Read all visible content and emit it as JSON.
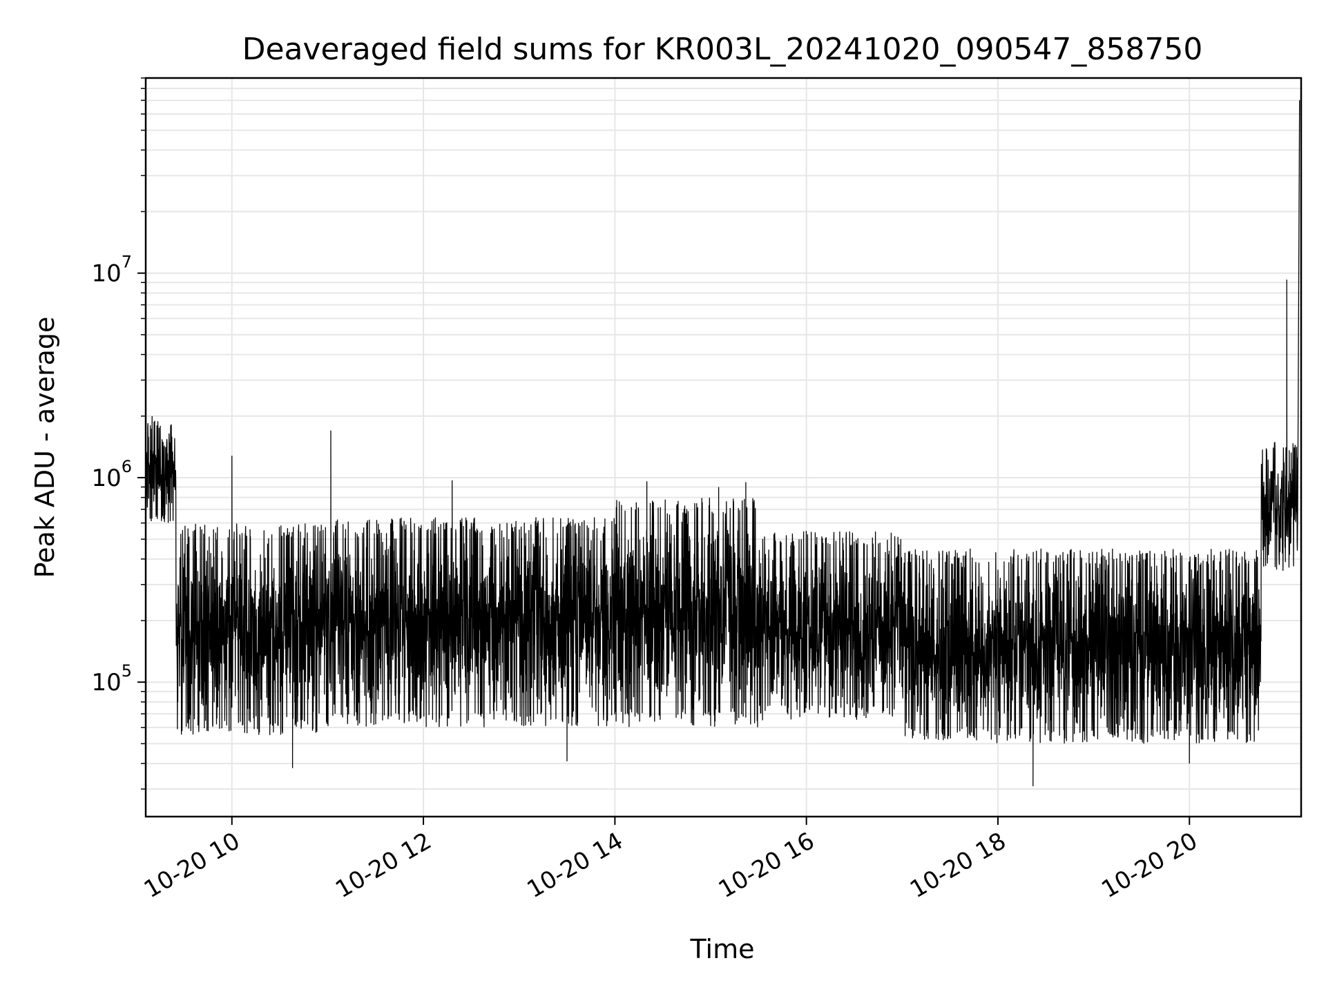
{
  "chart_data": {
    "type": "line",
    "title": "Deaveraged field sums for KR003L_20241020_090547_858750",
    "xlabel": "Time",
    "ylabel": "Peak ADU - average",
    "y_scale": "log",
    "grid": true,
    "line_color": "#000000",
    "grid_color": "#e6e6e6",
    "x_range": [
      "2024-10-20 09:06",
      "2024-10-20 21:10"
    ],
    "y_range": [
      22000,
      90000000
    ],
    "x_ticks": [
      {
        "value": "2024-10-20 10:00",
        "label": "10-20 10"
      },
      {
        "value": "2024-10-20 12:00",
        "label": "10-20 12"
      },
      {
        "value": "2024-10-20 14:00",
        "label": "10-20 14"
      },
      {
        "value": "2024-10-20 16:00",
        "label": "10-20 16"
      },
      {
        "value": "2024-10-20 18:00",
        "label": "10-20 18"
      },
      {
        "value": "2024-10-20 20:00",
        "label": "10-20 20"
      }
    ],
    "y_ticks": [
      {
        "value": 100000,
        "base": "10",
        "exp": "5"
      },
      {
        "value": 1000000,
        "base": "10",
        "exp": "6"
      },
      {
        "value": 10000000,
        "base": "10",
        "exp": "7"
      }
    ],
    "segments": [
      {
        "start": "2024-10-20 09:06",
        "end": "2024-10-20 09:25",
        "low": 600000,
        "high": 1900000
      },
      {
        "start": "2024-10-20 09:25",
        "end": "2024-10-20 11:00",
        "low": 55000,
        "high": 600000
      },
      {
        "start": "2024-10-20 11:00",
        "end": "2024-10-20 14:00",
        "low": 60000,
        "high": 640000
      },
      {
        "start": "2024-10-20 14:00",
        "end": "2024-10-20 15:30",
        "low": 60000,
        "high": 800000
      },
      {
        "start": "2024-10-20 15:30",
        "end": "2024-10-20 17:00",
        "low": 65000,
        "high": 550000
      },
      {
        "start": "2024-10-20 17:00",
        "end": "2024-10-20 20:45",
        "low": 50000,
        "high": 450000
      },
      {
        "start": "2024-10-20 20:45",
        "end": "2024-10-20 21:08",
        "low": 350000,
        "high": 1500000
      }
    ],
    "peaks": [
      {
        "x": "2024-10-20 09:10",
        "y": 2000000
      },
      {
        "x": "2024-10-20 10:00",
        "y": 1280000
      },
      {
        "x": "2024-10-20 11:02",
        "y": 1700000
      },
      {
        "x": "2024-10-20 12:18",
        "y": 970000
      },
      {
        "x": "2024-10-20 14:20",
        "y": 960000
      },
      {
        "x": "2024-10-20 15:05",
        "y": 900000
      },
      {
        "x": "2024-10-20 15:22",
        "y": 950000
      },
      {
        "x": "2024-10-20 21:01",
        "y": 9300000
      },
      {
        "x": "2024-10-20 21:09",
        "y": 70000000
      }
    ],
    "troughs": [
      {
        "x": "2024-10-20 10:38",
        "y": 38000
      },
      {
        "x": "2024-10-20 13:30",
        "y": 41000
      },
      {
        "x": "2024-10-20 18:22",
        "y": 31000
      },
      {
        "x": "2024-10-20 20:00",
        "y": 40000
      }
    ]
  }
}
